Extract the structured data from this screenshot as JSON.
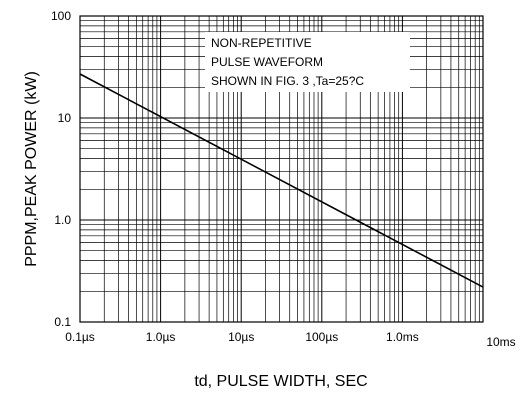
{
  "chart_data": {
    "type": "line",
    "xlabel": "td, PULSE WIDTH, SEC",
    "ylabel": "PPPM,PEAK POWER (kW)",
    "x_scale": "log",
    "y_scale": "log",
    "x_unit": "seconds",
    "y_unit": "kW",
    "xlim": [
      1e-07,
      0.01
    ],
    "ylim": [
      0.1,
      100
    ],
    "grid": true,
    "x_ticks": [
      {
        "value": 1e-07,
        "label": "0.1µs"
      },
      {
        "value": 1e-06,
        "label": "1.0µs"
      },
      {
        "value": 1e-05,
        "label": "10µs"
      },
      {
        "value": 0.0001,
        "label": "100µs"
      },
      {
        "value": 0.001,
        "label": "1.0ms"
      },
      {
        "value": 0.01,
        "label": "10ms"
      }
    ],
    "y_ticks": [
      {
        "value": 100,
        "label": "100"
      },
      {
        "value": 10,
        "label": "10"
      },
      {
        "value": 1,
        "label": "1.0"
      },
      {
        "value": 0.1,
        "label": "0.1"
      }
    ],
    "series": [
      {
        "color": "#000000",
        "points": [
          {
            "x": 1e-07,
            "y": 27
          },
          {
            "x": 0.01,
            "y": 0.22
          }
        ]
      }
    ],
    "annotation": [
      "NON-REPETITIVE",
      "PULSE WAVEFORM",
      "SHOWN IN FIG. 3 ,Ta=25?C"
    ]
  }
}
